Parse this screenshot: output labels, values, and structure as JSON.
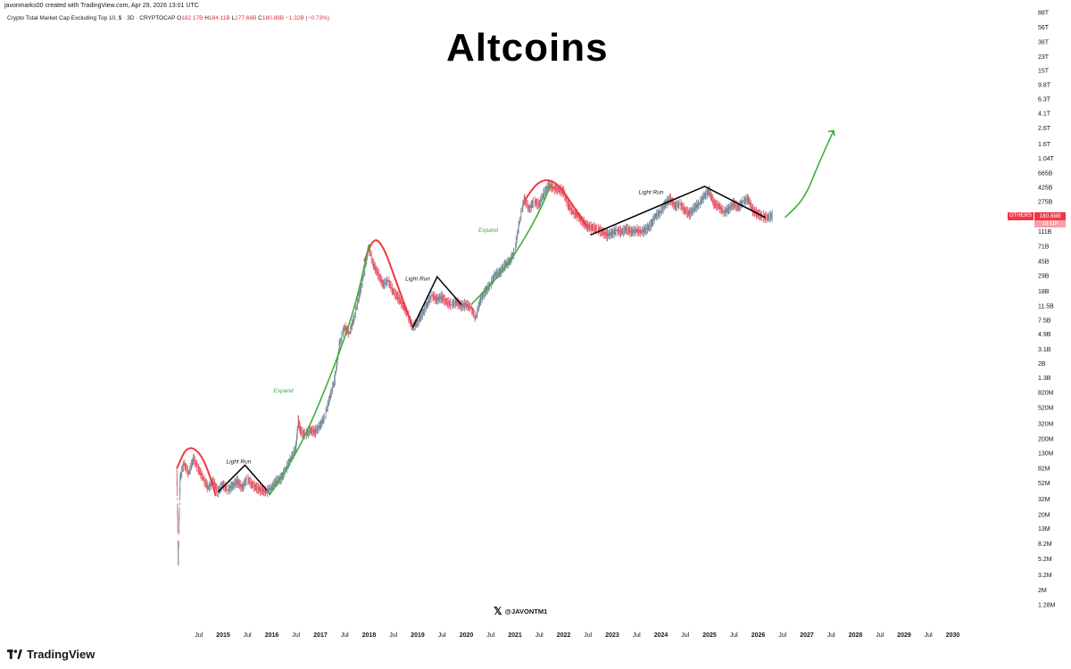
{
  "header": {
    "credit": "javonmarks00 created with TradingView.com, Apr 29, 2026 13:01 UTC",
    "symbol_desc": "Crypto Total Market Cap Excluding Top 10, $ · 3D · CRYPTOCAP",
    "open_label": "O",
    "open": "182.17B",
    "high_label": "H",
    "high": "184.11B",
    "low_label": "L",
    "low": "177.66B",
    "close_label": "C",
    "close": "180.88B",
    "change": "−1.32B (−0.73%)"
  },
  "title": "Altcoins",
  "watermark": {
    "handle": "@JAVONTM1",
    "icon": "x-logo-icon"
  },
  "footer": {
    "brand": "TradingView",
    "icon": "tradingview-logo-icon"
  },
  "price_tag": {
    "symbol": "OTHERS",
    "value": "180.88B",
    "countdown": "1d 11h"
  },
  "colors": {
    "red": "#f23645",
    "green": "#3fae3a",
    "candle_up": "#7a8a99",
    "candle_down": "#e25b6a",
    "black": "#000000"
  },
  "chart_data": {
    "type": "line",
    "log_scale": true,
    "grid": false,
    "legend": "none",
    "y_ticks": [
      "1.28M",
      "2M",
      "3.2M",
      "5.2M",
      "8.2M",
      "13M",
      "20M",
      "32M",
      "52M",
      "82M",
      "130M",
      "200M",
      "320M",
      "520M",
      "820M",
      "1.3B",
      "2B",
      "3.1B",
      "4.9B",
      "7.5B",
      "11.5B",
      "18B",
      "29B",
      "45B",
      "71B",
      "111B",
      "275B",
      "425B",
      "665B",
      "1.04T",
      "1.6T",
      "2.6T",
      "4.1T",
      "6.3T",
      "9.8T",
      "15T",
      "23T",
      "36T",
      "56T",
      "88T"
    ],
    "y_tick_values": [
      1.28,
      2,
      3.2,
      5.2,
      8.2,
      13,
      20,
      32,
      52,
      82,
      130,
      200,
      320,
      520,
      820,
      1300,
      2000,
      3100,
      4900,
      7500,
      11500,
      18000,
      29000,
      45000,
      71000,
      111000,
      275000,
      425000,
      665000,
      1040000,
      1600000,
      2600000,
      4100000,
      6300000,
      9800000,
      15000000,
      23000000,
      36000000,
      56000000,
      88000000
    ],
    "y_unit": "M",
    "x_ticks": [
      "Jul",
      "2015",
      "Jul",
      "2016",
      "Jul",
      "2017",
      "Jul",
      "2018",
      "Jul",
      "2019",
      "Jul",
      "2020",
      "Jul",
      "2021",
      "Jul",
      "2022",
      "Jul",
      "2023",
      "Jul",
      "2024",
      "Jul",
      "2025",
      "Jul",
      "2026",
      "Jul",
      "2027",
      "Jul",
      "2028",
      "Jul",
      "2029",
      "Jul",
      "2030"
    ],
    "x_tick_values": [
      2014.5,
      2015,
      2015.5,
      2016,
      2016.5,
      2017,
      2017.5,
      2018,
      2018.5,
      2019,
      2019.5,
      2020,
      2020.5,
      2021,
      2021.5,
      2022,
      2022.5,
      2023,
      2023.5,
      2024,
      2024.5,
      2025,
      2025.5,
      2026,
      2026.5,
      2027,
      2027.5,
      2028,
      2028.5,
      2029,
      2029.5,
      2030
    ],
    "series": [
      {
        "values": [
          [
            2014.05,
            75
          ],
          [
            2014.08,
            5
          ],
          [
            2014.12,
            60
          ],
          [
            2014.2,
            95
          ],
          [
            2014.3,
            70
          ],
          [
            2014.4,
            110
          ],
          [
            2014.5,
            80
          ],
          [
            2014.6,
            60
          ],
          [
            2014.7,
            45
          ],
          [
            2014.8,
            55
          ],
          [
            2014.9,
            40
          ],
          [
            2015.0,
            50
          ],
          [
            2015.1,
            42
          ],
          [
            2015.2,
            48
          ],
          [
            2015.3,
            55
          ],
          [
            2015.4,
            45
          ],
          [
            2015.5,
            60
          ],
          [
            2015.6,
            50
          ],
          [
            2015.7,
            45
          ],
          [
            2015.8,
            42
          ],
          [
            2015.9,
            40
          ],
          [
            2016.0,
            45
          ],
          [
            2016.1,
            55
          ],
          [
            2016.2,
            60
          ],
          [
            2016.3,
            80
          ],
          [
            2016.4,
            110
          ],
          [
            2016.5,
            150
          ],
          [
            2016.55,
            350
          ],
          [
            2016.6,
            250
          ],
          [
            2016.7,
            230
          ],
          [
            2016.8,
            260
          ],
          [
            2016.9,
            250
          ],
          [
            2017.0,
            300
          ],
          [
            2017.1,
            400
          ],
          [
            2017.2,
            700
          ],
          [
            2017.3,
            1200
          ],
          [
            2017.4,
            3500
          ],
          [
            2017.5,
            6000
          ],
          [
            2017.6,
            5000
          ],
          [
            2017.7,
            8000
          ],
          [
            2017.8,
            15000
          ],
          [
            2017.9,
            30000
          ],
          [
            2018.0,
            70000
          ],
          [
            2018.1,
            40000
          ],
          [
            2018.2,
            30000
          ],
          [
            2018.3,
            22000
          ],
          [
            2018.4,
            25000
          ],
          [
            2018.5,
            18000
          ],
          [
            2018.6,
            15000
          ],
          [
            2018.7,
            12000
          ],
          [
            2018.8,
            9000
          ],
          [
            2018.9,
            6000
          ],
          [
            2019.0,
            7000
          ],
          [
            2019.1,
            9000
          ],
          [
            2019.2,
            12000
          ],
          [
            2019.3,
            16000
          ],
          [
            2019.4,
            14000
          ],
          [
            2019.5,
            15000
          ],
          [
            2019.6,
            13000
          ],
          [
            2019.7,
            12000
          ],
          [
            2019.8,
            13000
          ],
          [
            2019.9,
            11500
          ],
          [
            2020.0,
            12000
          ],
          [
            2020.1,
            11000
          ],
          [
            2020.2,
            8000
          ],
          [
            2020.3,
            14000
          ],
          [
            2020.4,
            18000
          ],
          [
            2020.5,
            22000
          ],
          [
            2020.6,
            30000
          ],
          [
            2020.7,
            32000
          ],
          [
            2020.8,
            40000
          ],
          [
            2020.9,
            45000
          ],
          [
            2021.0,
            60000
          ],
          [
            2021.1,
            150000
          ],
          [
            2021.2,
            300000
          ],
          [
            2021.3,
            220000
          ],
          [
            2021.4,
            280000
          ],
          [
            2021.5,
            250000
          ],
          [
            2021.6,
            350000
          ],
          [
            2021.7,
            450000
          ],
          [
            2021.8,
            420000
          ],
          [
            2021.9,
            400000
          ],
          [
            2022.0,
            380000
          ],
          [
            2022.1,
            250000
          ],
          [
            2022.2,
            200000
          ],
          [
            2022.3,
            180000
          ],
          [
            2022.4,
            150000
          ],
          [
            2022.5,
            130000
          ],
          [
            2022.6,
            125000
          ],
          [
            2022.7,
            120000
          ],
          [
            2022.8,
            110000
          ],
          [
            2022.9,
            100000
          ],
          [
            2023.0,
            105000
          ],
          [
            2023.1,
            115000
          ],
          [
            2023.2,
            110000
          ],
          [
            2023.3,
            120000
          ],
          [
            2023.4,
            110000
          ],
          [
            2023.5,
            115000
          ],
          [
            2023.6,
            110000
          ],
          [
            2023.7,
            118000
          ],
          [
            2023.8,
            135000
          ],
          [
            2023.9,
            180000
          ],
          [
            2024.0,
            200000
          ],
          [
            2024.1,
            260000
          ],
          [
            2024.2,
            300000
          ],
          [
            2024.3,
            240000
          ],
          [
            2024.4,
            260000
          ],
          [
            2024.5,
            210000
          ],
          [
            2024.6,
            190000
          ],
          [
            2024.7,
            230000
          ],
          [
            2024.8,
            260000
          ],
          [
            2024.9,
            330000
          ],
          [
            2025.0,
            380000
          ],
          [
            2025.1,
            260000
          ],
          [
            2025.2,
            240000
          ],
          [
            2025.3,
            200000
          ],
          [
            2025.4,
            220000
          ],
          [
            2025.5,
            260000
          ],
          [
            2025.6,
            230000
          ],
          [
            2025.7,
            280000
          ],
          [
            2025.8,
            300000
          ],
          [
            2025.9,
            210000
          ],
          [
            2026.0,
            190000
          ],
          [
            2026.1,
            175000
          ],
          [
            2026.2,
            170000
          ],
          [
            2026.3,
            180880
          ]
        ]
      }
    ],
    "annotations": [
      {
        "text": "Light Run",
        "x": 2015.32,
        "y": 95
      },
      {
        "text": "Expand",
        "x": 2016.24,
        "y": 820
      },
      {
        "text": "Light Run",
        "x": 2019.0,
        "y": 25000
      },
      {
        "text": "Expand",
        "x": 2020.45,
        "y": 110000
      },
      {
        "text": "Light Run",
        "x": 2023.8,
        "y": 350000
      }
    ],
    "drawings": {
      "red_arcs": [
        [
          [
            2014.05,
            82
          ],
          [
            2014.25,
            160
          ],
          [
            2014.5,
            140
          ],
          [
            2014.7,
            75
          ],
          [
            2014.85,
            35
          ]
        ],
        [
          [
            2017.9,
            45000
          ],
          [
            2018.1,
            95000
          ],
          [
            2018.3,
            70000
          ],
          [
            2018.55,
            25000
          ],
          [
            2018.9,
            6000
          ]
        ],
        [
          [
            2021.2,
            290000
          ],
          [
            2021.5,
            540000
          ],
          [
            2021.85,
            520000
          ],
          [
            2022.2,
            240000
          ],
          [
            2022.5,
            125000
          ]
        ]
      ],
      "green_arcs": [
        [
          [
            2015.95,
            36
          ],
          [
            2016.6,
            160
          ],
          [
            2017.2,
            1300
          ],
          [
            2017.7,
            10000
          ],
          [
            2018.0,
            75000
          ]
        ],
        [
          [
            2020.1,
            12000
          ],
          [
            2020.7,
            30000
          ],
          [
            2021.1,
            70000
          ],
          [
            2021.5,
            200000
          ],
          [
            2021.75,
            480000
          ]
        ],
        [
          [
            2026.55,
            170000
          ],
          [
            2026.95,
            300000
          ],
          [
            2027.25,
            900000
          ],
          [
            2027.55,
            2400000
          ]
        ]
      ],
      "black_lines": [
        [
          [
            2014.9,
            40
          ],
          [
            2015.45,
            90
          ],
          [
            2015.9,
            42
          ]
        ],
        [
          [
            2018.9,
            6000
          ],
          [
            2019.4,
            28000
          ],
          [
            2019.9,
            12000
          ]
        ],
        [
          [
            2022.55,
            100000
          ],
          [
            2024.9,
            440000
          ],
          [
            2026.15,
            170000
          ]
        ]
      ]
    }
  }
}
